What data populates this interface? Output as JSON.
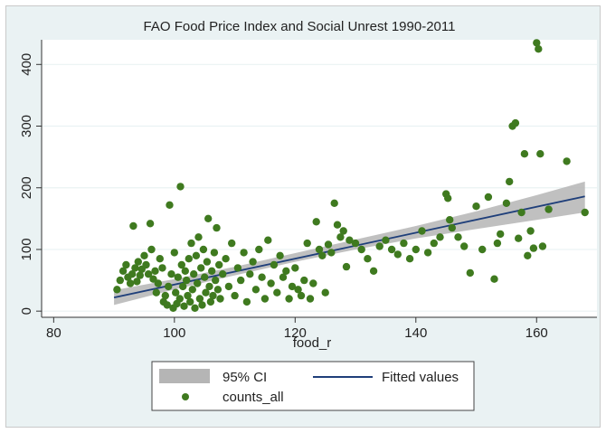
{
  "chart_data": {
    "type": "scatter",
    "title": "FAO Food Price Index and Social Unrest 1990-2011",
    "xlabel": "food_r",
    "ylabel": "",
    "xlim": [
      78,
      170
    ],
    "ylim": [
      -10,
      440
    ],
    "x_ticks": [
      80,
      100,
      120,
      140,
      160
    ],
    "y_ticks": [
      0,
      100,
      200,
      300,
      400
    ],
    "grid": "horizontal",
    "colors": {
      "points": "#3f7a1f",
      "fit": "#1f3f7a",
      "ci": "#b5b5b5",
      "plot_bg": "#ffffff",
      "outer_bg": "#eaf2f3"
    },
    "legend": {
      "position": "bottom",
      "entries": [
        "95% CI",
        "Fitted values",
        "counts_all"
      ]
    },
    "fitted_line": {
      "x": [
        90,
        168
      ],
      "y": [
        22,
        186
      ]
    },
    "ci_band": {
      "x": [
        90,
        100,
        110,
        120,
        130,
        140,
        150,
        160,
        168
      ],
      "lower": [
        10,
        35,
        58,
        80,
        100,
        118,
        133,
        148,
        160
      ],
      "upper": [
        34,
        52,
        72,
        94,
        116,
        138,
        162,
        188,
        210
      ]
    },
    "series": [
      {
        "name": "counts_all",
        "points": [
          [
            90.5,
            35
          ],
          [
            91,
            50
          ],
          [
            91.5,
            65
          ],
          [
            92,
            75
          ],
          [
            92.3,
            55
          ],
          [
            92.7,
            45
          ],
          [
            93,
            60
          ],
          [
            93.2,
            138
          ],
          [
            93.5,
            70
          ],
          [
            93.8,
            48
          ],
          [
            94,
            80
          ],
          [
            94.3,
            58
          ],
          [
            94.6,
            68
          ],
          [
            95,
            90
          ],
          [
            95.3,
            75
          ],
          [
            95.7,
            60
          ],
          [
            96,
            142
          ],
          [
            96.2,
            100
          ],
          [
            96.5,
            52
          ],
          [
            96.8,
            65
          ],
          [
            97,
            30
          ],
          [
            97.3,
            45
          ],
          [
            97.6,
            85
          ],
          [
            98,
            70
          ],
          [
            98.2,
            15
          ],
          [
            98.5,
            25
          ],
          [
            98.8,
            10
          ],
          [
            99,
            40
          ],
          [
            99.2,
            172
          ],
          [
            99.5,
            60
          ],
          [
            99.8,
            5
          ],
          [
            100,
            95
          ],
          [
            100.2,
            30
          ],
          [
            100.4,
            12
          ],
          [
            100.6,
            55
          ],
          [
            100.9,
            20
          ],
          [
            101,
            202
          ],
          [
            101.2,
            75
          ],
          [
            101.4,
            40
          ],
          [
            101.6,
            8
          ],
          [
            101.8,
            65
          ],
          [
            102,
            50
          ],
          [
            102.2,
            25
          ],
          [
            102.4,
            85
          ],
          [
            102.6,
            15
          ],
          [
            102.8,
            110
          ],
          [
            103,
            35
          ],
          [
            103.2,
            60
          ],
          [
            103.4,
            5
          ],
          [
            103.6,
            90
          ],
          [
            103.8,
            45
          ],
          [
            104,
            120
          ],
          [
            104.2,
            20
          ],
          [
            104.4,
            70
          ],
          [
            104.6,
            10
          ],
          [
            104.8,
            100
          ],
          [
            105,
            55
          ],
          [
            105.2,
            30
          ],
          [
            105.4,
            80
          ],
          [
            105.6,
            150
          ],
          [
            105.8,
            40
          ],
          [
            106,
            15
          ],
          [
            106.2,
            65
          ],
          [
            106.4,
            25
          ],
          [
            106.6,
            95
          ],
          [
            106.8,
            50
          ],
          [
            107,
            135
          ],
          [
            107.2,
            35
          ],
          [
            107.4,
            75
          ],
          [
            107.6,
            20
          ],
          [
            108,
            60
          ],
          [
            108.5,
            85
          ],
          [
            109,
            40
          ],
          [
            109.5,
            110
          ],
          [
            110,
            25
          ],
          [
            110.5,
            70
          ],
          [
            111,
            50
          ],
          [
            111.5,
            95
          ],
          [
            112,
            15
          ],
          [
            112.5,
            60
          ],
          [
            113,
            80
          ],
          [
            113.5,
            35
          ],
          [
            114,
            100
          ],
          [
            114.5,
            55
          ],
          [
            115,
            20
          ],
          [
            115.5,
            115
          ],
          [
            116,
            45
          ],
          [
            116.5,
            75
          ],
          [
            117,
            30
          ],
          [
            117.5,
            90
          ],
          [
            118,
            55
          ],
          [
            118.5,
            65
          ],
          [
            119,
            20
          ],
          [
            119.5,
            40
          ],
          [
            120,
            70
          ],
          [
            120.5,
            35
          ],
          [
            121,
            25
          ],
          [
            121.5,
            50
          ],
          [
            122,
            110
          ],
          [
            122.5,
            20
          ],
          [
            123,
            45
          ],
          [
            123.5,
            145
          ],
          [
            124,
            100
          ],
          [
            124.5,
            90
          ],
          [
            125,
            30
          ],
          [
            125.5,
            108
          ],
          [
            126,
            95
          ],
          [
            126.5,
            175
          ],
          [
            127,
            140
          ],
          [
            127.5,
            120
          ],
          [
            128,
            130
          ],
          [
            128.5,
            72
          ],
          [
            129,
            115
          ],
          [
            130,
            110
          ],
          [
            131,
            100
          ],
          [
            132,
            85
          ],
          [
            133,
            65
          ],
          [
            134,
            105
          ],
          [
            135,
            115
          ],
          [
            136,
            100
          ],
          [
            137,
            92
          ],
          [
            138,
            110
          ],
          [
            139,
            85
          ],
          [
            140,
            100
          ],
          [
            141,
            130
          ],
          [
            142,
            95
          ],
          [
            143,
            110
          ],
          [
            144,
            120
          ],
          [
            145,
            190
          ],
          [
            145.3,
            183
          ],
          [
            145.6,
            148
          ],
          [
            146,
            135
          ],
          [
            147,
            120
          ],
          [
            148,
            105
          ],
          [
            149,
            62
          ],
          [
            150,
            170
          ],
          [
            151,
            100
          ],
          [
            152,
            185
          ],
          [
            153,
            52
          ],
          [
            153.5,
            110
          ],
          [
            154,
            125
          ],
          [
            155,
            175
          ],
          [
            155.5,
            210
          ],
          [
            156,
            300
          ],
          [
            156.5,
            305
          ],
          [
            157,
            118
          ],
          [
            157.5,
            160
          ],
          [
            158,
            255
          ],
          [
            158.5,
            90
          ],
          [
            159,
            130
          ],
          [
            159.5,
            102
          ],
          [
            160,
            435
          ],
          [
            160.3,
            425
          ],
          [
            160.6,
            255
          ],
          [
            161,
            105
          ],
          [
            162,
            165
          ],
          [
            165,
            243
          ],
          [
            168,
            160
          ]
        ]
      }
    ]
  }
}
